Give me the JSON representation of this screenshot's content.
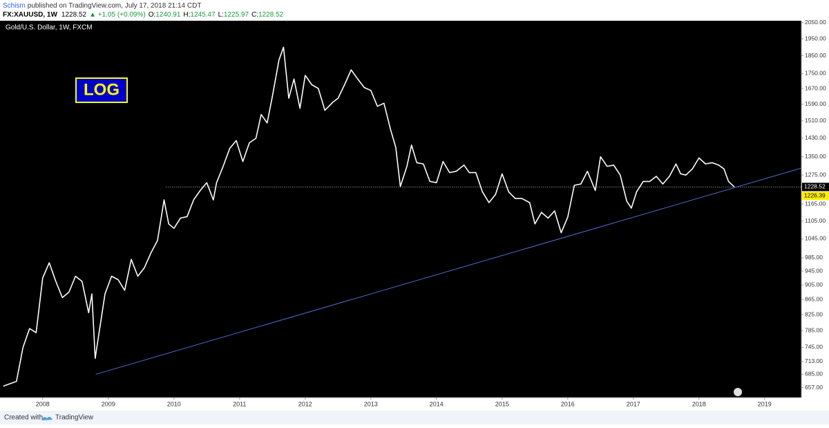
{
  "header": {
    "author": "Schism",
    "published": "published on TradingView.com, July 17, 2018 21:14 CDT",
    "symbol": "FX:XAUUSD, 1W",
    "last": "1228.52",
    "change": "▲ +1.05 (+0.09%)",
    "open_label": "O:",
    "open": "1240.91",
    "high_label": "H:",
    "high": "1245.47",
    "low_label": "L:",
    "low": "1225.97",
    "close_label": "C:",
    "close": "1228.52"
  },
  "footer": {
    "created": "Created with",
    "brand": "TradingView"
  },
  "chart_data": {
    "type": "line",
    "title": "Gold/U.S. Dollar, 1W, FXCM",
    "log_scale": true,
    "grid": false,
    "background": "#000000",
    "annotations": [
      {
        "text": "LOG",
        "color": "#ffff00",
        "background": "#0000cc"
      }
    ],
    "xlim": [
      2007.35,
      2019.56
    ],
    "xticks": [
      2008,
      2009,
      2010,
      2011,
      2012,
      2013,
      2014,
      2015,
      2016,
      2017,
      2018,
      2019
    ],
    "ylim": [
      637,
      2063
    ],
    "yticks": [
      {
        "value": 2050,
        "label": "2050.00"
      },
      {
        "value": 1950,
        "label": "1950.00"
      },
      {
        "value": 1850,
        "label": "1850.00"
      },
      {
        "value": 1750,
        "label": "1750.00"
      },
      {
        "value": 1670,
        "label": "1670.00"
      },
      {
        "value": 1590,
        "label": "1590.00"
      },
      {
        "value": 1510,
        "label": "1510.00"
      },
      {
        "value": 1430,
        "label": "1430.00"
      },
      {
        "value": 1350,
        "label": "1350.00"
      },
      {
        "value": 1275,
        "label": "1275.00"
      },
      {
        "value": 1165,
        "label": "1165.00"
      },
      {
        "value": 1105,
        "label": "1105.00"
      },
      {
        "value": 1045,
        "label": "1045.00"
      },
      {
        "value": 985,
        "label": "985.00"
      },
      {
        "value": 945,
        "label": "945.00"
      },
      {
        "value": 905,
        "label": "905.00"
      },
      {
        "value": 865,
        "label": "865.00"
      },
      {
        "value": 825,
        "label": "825.00"
      },
      {
        "value": 785,
        "label": "785.00"
      },
      {
        "value": 745,
        "label": "745.00"
      },
      {
        "value": 713,
        "label": "713.00"
      },
      {
        "value": 685,
        "label": "685.00"
      },
      {
        "value": 657,
        "label": "657.00"
      }
    ],
    "hline": {
      "value": 1228.52,
      "x_start": 2009.88,
      "color": "#ffffff"
    },
    "trendline": {
      "x": [
        2008.81,
        2019.56
      ],
      "values": [
        685,
        1303
      ],
      "color": "#4a6fd1",
      "current": 1226.39
    },
    "series": [
      {
        "name": "XAUUSD",
        "color": "#ffffff",
        "x": [
          2007.4,
          2007.5,
          2007.6,
          2007.7,
          2007.8,
          2007.9,
          2008.0,
          2008.1,
          2008.2,
          2008.3,
          2008.4,
          2008.5,
          2008.6,
          2008.7,
          2008.75,
          2008.8,
          2008.85,
          2008.95,
          2009.05,
          2009.15,
          2009.25,
          2009.35,
          2009.45,
          2009.55,
          2009.65,
          2009.75,
          2009.85,
          2009.92,
          2010.0,
          2010.1,
          2010.2,
          2010.3,
          2010.4,
          2010.5,
          2010.6,
          2010.65,
          2010.75,
          2010.85,
          2010.95,
          2011.05,
          2011.15,
          2011.25,
          2011.33,
          2011.42,
          2011.5,
          2011.6,
          2011.67,
          2011.75,
          2011.83,
          2011.92,
          2012.0,
          2012.1,
          2012.2,
          2012.3,
          2012.42,
          2012.5,
          2012.6,
          2012.7,
          2012.8,
          2012.9,
          2013.0,
          2013.1,
          2013.2,
          2013.3,
          2013.38,
          2013.45,
          2013.55,
          2013.62,
          2013.7,
          2013.8,
          2013.9,
          2014.0,
          2014.1,
          2014.2,
          2014.3,
          2014.42,
          2014.5,
          2014.6,
          2014.7,
          2014.8,
          2014.9,
          2015.0,
          2015.1,
          2015.2,
          2015.3,
          2015.42,
          2015.5,
          2015.6,
          2015.7,
          2015.8,
          2015.9,
          2016.0,
          2016.1,
          2016.2,
          2016.3,
          2016.42,
          2016.5,
          2016.6,
          2016.7,
          2016.8,
          2016.9,
          2016.97,
          2017.05,
          2017.15,
          2017.25,
          2017.35,
          2017.45,
          2017.55,
          2017.65,
          2017.72,
          2017.8,
          2017.9,
          2018.0,
          2018.1,
          2018.2,
          2018.3,
          2018.38,
          2018.45,
          2018.54
        ],
        "values": [
          660,
          665,
          670,
          745,
          790,
          780,
          925,
          970,
          915,
          870,
          885,
          930,
          915,
          830,
          880,
          720,
          770,
          880,
          930,
          920,
          890,
          980,
          930,
          955,
          1000,
          1040,
          1180,
          1095,
          1080,
          1115,
          1120,
          1180,
          1215,
          1245,
          1180,
          1245,
          1310,
          1385,
          1420,
          1330,
          1410,
          1430,
          1540,
          1500,
          1630,
          1825,
          1900,
          1620,
          1720,
          1570,
          1740,
          1690,
          1670,
          1560,
          1600,
          1620,
          1690,
          1770,
          1720,
          1675,
          1660,
          1580,
          1595,
          1470,
          1390,
          1230,
          1310,
          1400,
          1325,
          1320,
          1250,
          1245,
          1330,
          1285,
          1290,
          1315,
          1285,
          1285,
          1210,
          1170,
          1200,
          1280,
          1210,
          1185,
          1185,
          1170,
          1095,
          1135,
          1115,
          1140,
          1065,
          1118,
          1235,
          1240,
          1290,
          1215,
          1350,
          1310,
          1315,
          1275,
          1175,
          1150,
          1210,
          1250,
          1250,
          1270,
          1240,
          1270,
          1320,
          1280,
          1275,
          1300,
          1345,
          1320,
          1325,
          1315,
          1300,
          1250,
          1228.52
        ]
      }
    ]
  }
}
